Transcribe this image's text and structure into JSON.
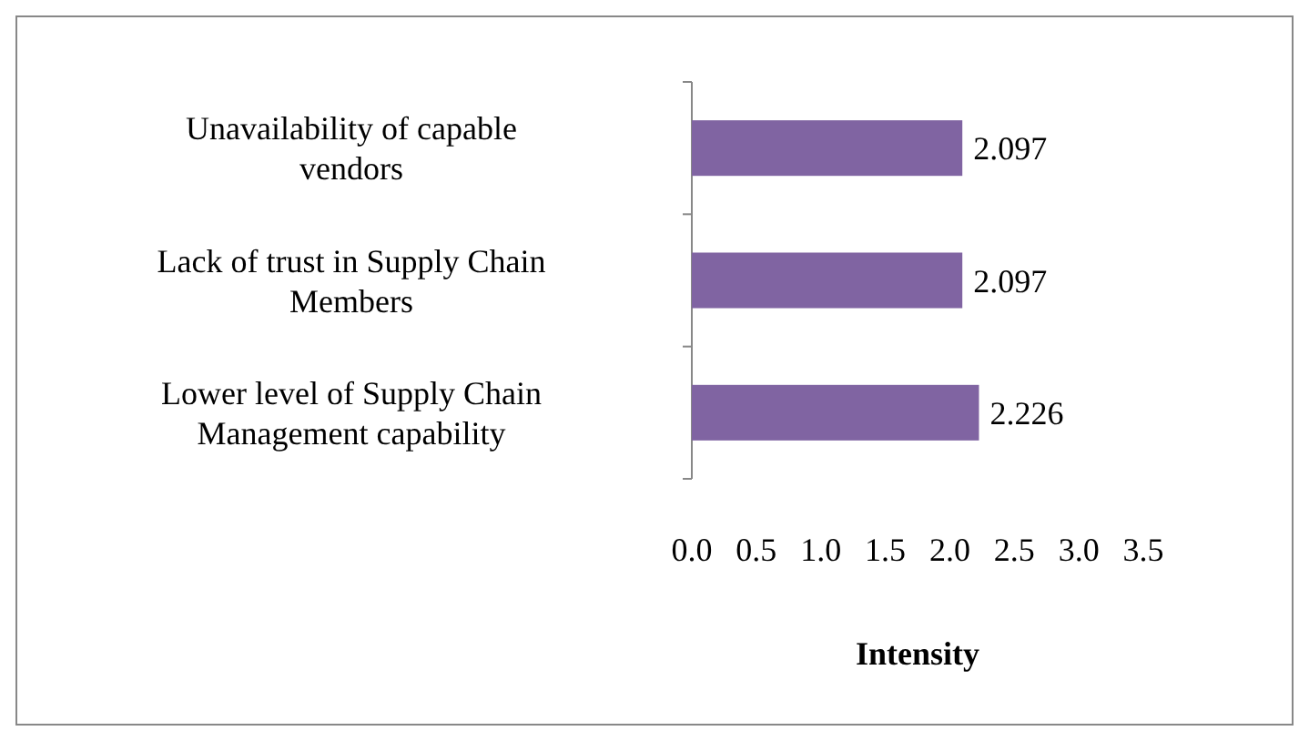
{
  "chart_data": {
    "type": "bar",
    "orientation": "horizontal",
    "categories": [
      "Unavailability of capable vendors",
      "Lack of trust in Supply Chain Members",
      "Lower level of Supply Chain Management capability"
    ],
    "values": [
      2.097,
      2.097,
      2.226
    ],
    "color": "#8064a2",
    "xlim": [
      0,
      3.5
    ],
    "xticks": [
      {
        "value": 0,
        "label": "0.0"
      },
      {
        "value": 0.5,
        "label": "0.5"
      },
      {
        "value": 1,
        "label": "1.0"
      },
      {
        "value": 1.5,
        "label": "1.5"
      },
      {
        "value": 2,
        "label": "2.0"
      },
      {
        "value": 2.5,
        "label": "2.5"
      },
      {
        "value": 3,
        "label": "3.0"
      },
      {
        "value": 3.5,
        "label": "3.5"
      }
    ],
    "xlabel": "Intensity",
    "data_labels": true
  }
}
